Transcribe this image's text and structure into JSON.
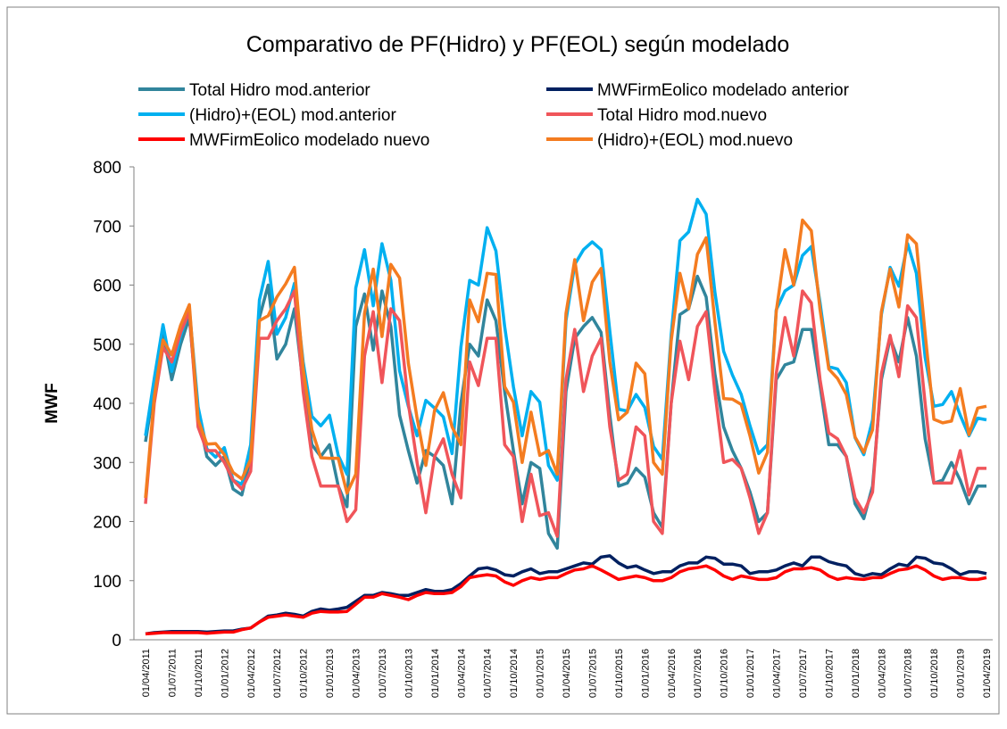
{
  "chart_data": {
    "type": "line",
    "title": "Comparativo de PF(Hidro) y PF(EOL) según modelado",
    "y_label": "MWF",
    "ylim": [
      0,
      800
    ],
    "yticks": [
      0,
      100,
      200,
      300,
      400,
      500,
      600,
      700,
      800
    ],
    "grid": false,
    "legend": "top",
    "categories": [
      "01/04/2011",
      null,
      null,
      "01/07/2011",
      null,
      null,
      "01/10/2011",
      null,
      null,
      "01/01/2012",
      null,
      null,
      "01/04/2012",
      null,
      null,
      "01/07/2012",
      null,
      null,
      "01/10/2012",
      null,
      null,
      "01/01/2013",
      null,
      null,
      "01/04/2013",
      null,
      null,
      "01/07/2013",
      null,
      null,
      "01/10/2013",
      null,
      null,
      "01/01/2014",
      null,
      null,
      "01/04/2014",
      null,
      null,
      "01/07/2014",
      null,
      null,
      "01/10/2014",
      null,
      null,
      "01/01/2015",
      null,
      null,
      "01/04/2015",
      null,
      null,
      "01/07/2015",
      null,
      null,
      "01/10/2015",
      null,
      null,
      "01/01/2016",
      null,
      null,
      "01/04/2016",
      null,
      null,
      "01/07/2016",
      null,
      null,
      "01/10/2016",
      null,
      null,
      "01/01/2017",
      null,
      null,
      "01/04/2017",
      null,
      null,
      "01/07/2017",
      null,
      null,
      "01/10/2017",
      null,
      null,
      "01/01/2018",
      null,
      null,
      "01/04/2018",
      null,
      null,
      "01/07/2018",
      null,
      null,
      "01/10/2018",
      null,
      null,
      "01/01/2019",
      null,
      null,
      "01/04/2019"
    ],
    "series": [
      {
        "name": "Total Hidro mod.anterior",
        "color": "#31859c",
        "values": [
          335,
          430,
          520,
          440,
          500,
          545,
          380,
          310,
          295,
          310,
          255,
          245,
          310,
          545,
          600,
          475,
          500,
          560,
          430,
          330,
          310,
          330,
          260,
          225,
          530,
          585,
          490,
          590,
          530,
          380,
          320,
          265,
          320,
          310,
          295,
          230,
          400,
          500,
          480,
          575,
          540,
          420,
          320,
          230,
          300,
          290,
          180,
          155,
          420,
          510,
          530,
          545,
          520,
          380,
          260,
          265,
          290,
          275,
          215,
          190,
          400,
          550,
          560,
          615,
          580,
          450,
          360,
          320,
          290,
          250,
          200,
          215,
          440,
          465,
          470,
          525,
          525,
          430,
          330,
          330,
          310,
          230,
          205,
          260,
          440,
          510,
          470,
          545,
          480,
          340,
          265,
          270,
          300,
          270,
          230,
          260,
          260
        ]
      },
      {
        "name": "MWFirmEolico modelado  anterior",
        "color": "#002060",
        "values": [
          10,
          12,
          13,
          14,
          14,
          14,
          14,
          13,
          14,
          15,
          15,
          18,
          20,
          30,
          40,
          42,
          45,
          43,
          40,
          48,
          52,
          50,
          52,
          55,
          65,
          75,
          75,
          80,
          78,
          75,
          75,
          80,
          85,
          82,
          82,
          85,
          95,
          108,
          120,
          122,
          118,
          110,
          108,
          115,
          120,
          112,
          115,
          115,
          120,
          125,
          130,
          128,
          140,
          142,
          130,
          122,
          125,
          118,
          112,
          115,
          115,
          125,
          130,
          130,
          140,
          138,
          128,
          128,
          125,
          112,
          115,
          115,
          118,
          125,
          130,
          125,
          140,
          140,
          132,
          128,
          125,
          112,
          108,
          112,
          110,
          120,
          128,
          125,
          140,
          138,
          130,
          128,
          120,
          110,
          115,
          115,
          112
        ]
      },
      {
        "name": "(Hidro)+(EOL) mod.anterior",
        "color": "#00b0f0",
        "values": [
          345,
          442,
          533,
          454,
          514,
          559,
          394,
          323,
          309,
          325,
          270,
          263,
          330,
          575,
          640,
          517,
          545,
          603,
          470,
          378,
          362,
          380,
          312,
          280,
          595,
          660,
          565,
          670,
          608,
          455,
          395,
          345,
          405,
          392,
          377,
          315,
          495,
          608,
          600,
          697,
          658,
          530,
          428,
          345,
          420,
          402,
          295,
          270,
          540,
          635,
          660,
          673,
          660,
          522,
          390,
          387,
          415,
          393,
          327,
          305,
          515,
          675,
          690,
          745,
          720,
          588,
          488,
          448,
          415,
          362,
          315,
          330,
          558,
          590,
          600,
          650,
          665,
          570,
          462,
          458,
          435,
          342,
          313,
          372,
          550,
          630,
          598,
          670,
          620,
          478,
          395,
          398,
          420,
          380,
          345,
          375,
          372
        ]
      },
      {
        "name": "Total Hidro mod.nuevo",
        "color": "#f0555a",
        "values": [
          230,
          400,
          495,
          470,
          520,
          555,
          360,
          320,
          320,
          300,
          270,
          255,
          285,
          510,
          510,
          540,
          560,
          590,
          420,
          310,
          260,
          260,
          260,
          200,
          220,
          480,
          555,
          435,
          560,
          540,
          400,
          300,
          215,
          310,
          340,
          280,
          240,
          470,
          430,
          510,
          510,
          330,
          310,
          200,
          280,
          210,
          215,
          175,
          440,
          525,
          420,
          480,
          510,
          360,
          270,
          280,
          360,
          345,
          200,
          180,
          400,
          505,
          440,
          530,
          555,
          420,
          300,
          305,
          290,
          240,
          180,
          215,
          450,
          545,
          480,
          590,
          570,
          440,
          350,
          340,
          310,
          240,
          215,
          250,
          450,
          515,
          445,
          565,
          545,
          400,
          265,
          265,
          265,
          320,
          245,
          290,
          290
        ]
      },
      {
        "name": "MWFirmEolico modelado  nuevo",
        "color": "#ff0000",
        "values": [
          10,
          11,
          12,
          12,
          12,
          12,
          12,
          11,
          12,
          13,
          13,
          17,
          20,
          30,
          38,
          40,
          42,
          40,
          38,
          45,
          48,
          47,
          47,
          48,
          60,
          72,
          72,
          78,
          75,
          72,
          68,
          75,
          80,
          78,
          78,
          80,
          90,
          105,
          108,
          110,
          108,
          98,
          92,
          100,
          105,
          102,
          105,
          105,
          112,
          118,
          120,
          125,
          118,
          110,
          102,
          105,
          108,
          105,
          100,
          100,
          105,
          115,
          120,
          122,
          125,
          118,
          108,
          102,
          108,
          105,
          102,
          102,
          105,
          115,
          120,
          120,
          122,
          118,
          108,
          102,
          105,
          103,
          102,
          105,
          105,
          112,
          118,
          120,
          125,
          118,
          108,
          102,
          105,
          105,
          102,
          102,
          105
        ]
      },
      {
        "name": "(Hidro)+(EOL) mod.nuevo",
        "color": "#f47c20",
        "values": [
          240,
          411,
          507,
          482,
          532,
          567,
          372,
          331,
          332,
          313,
          283,
          272,
          305,
          540,
          548,
          580,
          602,
          630,
          458,
          355,
          308,
          307,
          307,
          248,
          280,
          552,
          627,
          513,
          635,
          612,
          468,
          375,
          295,
          388,
          418,
          360,
          330,
          575,
          538,
          620,
          618,
          428,
          402,
          300,
          385,
          312,
          320,
          280,
          552,
          643,
          540,
          605,
          628,
          470,
          372,
          385,
          468,
          450,
          300,
          280,
          505,
          620,
          560,
          652,
          680,
          538,
          408,
          407,
          398,
          345,
          282,
          317,
          555,
          660,
          600,
          710,
          692,
          558,
          458,
          442,
          415,
          343,
          317,
          355,
          555,
          627,
          563,
          685,
          670,
          518,
          373,
          367,
          370,
          425,
          347,
          392,
          395
        ]
      }
    ]
  }
}
